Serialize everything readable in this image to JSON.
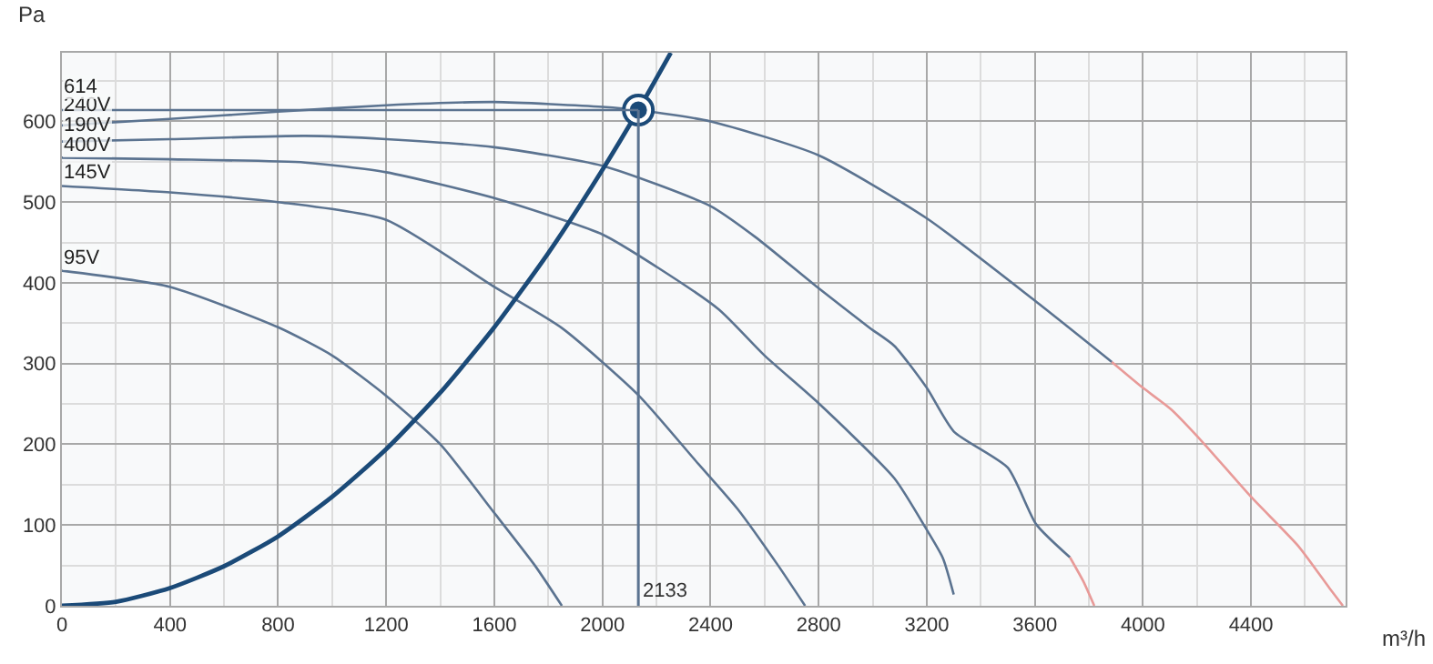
{
  "chart_data": {
    "type": "line",
    "xlabel": "m³/h",
    "ylabel": "Pa",
    "xlim": [
      0,
      4750
    ],
    "ylim": [
      0,
      685
    ],
    "xticks": [
      0,
      400,
      800,
      1200,
      1600,
      2000,
      2400,
      2800,
      3200,
      3600,
      4000,
      4400
    ],
    "yticks": [
      0,
      100,
      200,
      300,
      400,
      500,
      600
    ],
    "grid": true,
    "marker": "none",
    "line_style": "solid",
    "series": [
      {
        "name": "240V",
        "color": "#5b7390",
        "x": [
          0,
          400,
          800,
          1200,
          1600,
          2000,
          2133,
          2400,
          2800,
          3200,
          3600,
          3885
        ],
        "values": [
          595,
          603,
          612,
          620,
          624,
          618,
          614,
          600,
          558,
          480,
          378,
          302
        ]
      },
      {
        "color": "#e89a98",
        "x": [
          3885,
          4000,
          4105,
          4220,
          4400,
          4575,
          4690,
          4740
        ],
        "values": [
          302,
          270,
          243,
          203,
          135,
          74,
          22,
          0
        ]
      },
      {
        "name": "190V",
        "color": "#5b7390",
        "x": [
          0,
          400,
          900,
          1200,
          1600,
          2000,
          2400,
          2565,
          2790,
          2990,
          3080,
          3200,
          3300,
          3500,
          3605,
          3730
        ],
        "values": [
          575,
          578,
          582,
          578,
          568,
          545,
          495,
          457,
          396,
          344,
          322,
          270,
          216,
          171,
          101,
          60
        ]
      },
      {
        "color": "#e89a98",
        "x": [
          3730,
          3780,
          3820
        ],
        "values": [
          60,
          30,
          0
        ]
      },
      {
        "name": "400V",
        "color": "#5b7390",
        "x": [
          0,
          400,
          900,
          1200,
          1600,
          2000,
          2200,
          2431,
          2600,
          2790,
          3080,
          3195,
          3260,
          3300
        ],
        "values": [
          555,
          553,
          549,
          537,
          505,
          460,
          420,
          367,
          310,
          254,
          158,
          97,
          59,
          14
        ]
      },
      {
        "name": "145V",
        "color": "#5b7390",
        "x": [
          0,
          400,
          800,
          1200,
          1600,
          1850,
          2133,
          2344,
          2500,
          2650,
          2750
        ],
        "values": [
          520,
          512,
          500,
          478,
          395,
          344,
          261,
          180,
          120,
          50,
          0
        ]
      },
      {
        "name": "95V",
        "color": "#5b7390",
        "x": [
          0,
          400,
          800,
          1000,
          1200,
          1400,
          1600,
          1750,
          1850
        ],
        "values": [
          415,
          395,
          345,
          310,
          260,
          200,
          115,
          50,
          0
        ]
      },
      {
        "color": "#1b4a78",
        "x": [
          0,
          200,
          400,
          600,
          800,
          1000,
          1200,
          1400,
          1600,
          1800,
          2000,
          2133,
          2253
        ],
        "values": [
          0,
          5,
          22,
          49,
          86,
          135,
          194,
          264,
          345,
          437,
          540,
          614,
          685
        ]
      },
      {
        "type": "scatter",
        "marker": "circle",
        "color": "#1b4a78",
        "x": [
          2133
        ],
        "values": [
          614
        ]
      }
    ],
    "ref_lines": [
      {
        "axis": "x",
        "value": 2133,
        "label": "2133",
        "color": "#5b7390"
      },
      {
        "axis": "y",
        "value": 614,
        "label": "614",
        "color": "#5b7390"
      }
    ]
  }
}
